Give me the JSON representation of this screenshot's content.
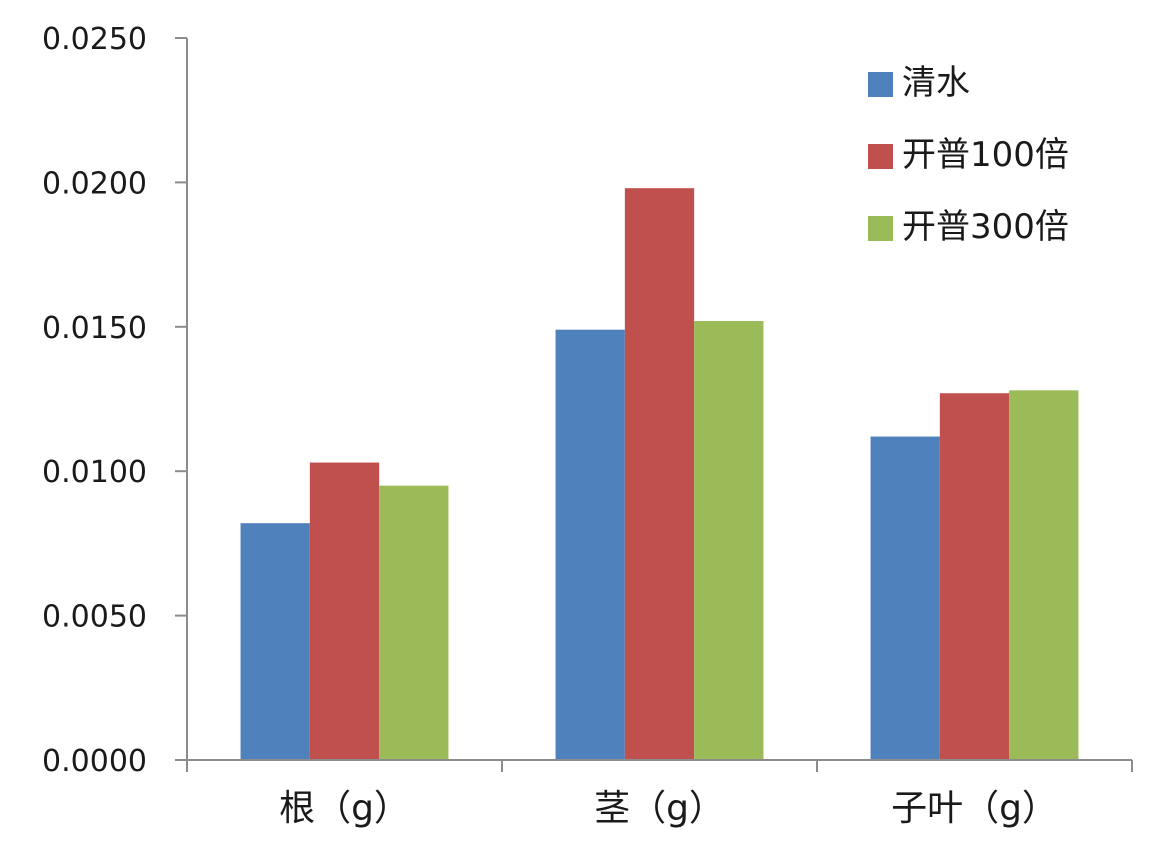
{
  "chart_data": {
    "type": "bar",
    "categories": [
      "根（g）",
      "茎（g）",
      "子叶（g）"
    ],
    "series": [
      {
        "name": "清水",
        "values": [
          0.0082,
          0.0149,
          0.0112
        ],
        "color": "#4F81BD"
      },
      {
        "name": "开普100倍",
        "values": [
          0.0103,
          0.0198,
          0.0127
        ],
        "color": "#C0504D"
      },
      {
        "name": "开普300倍",
        "values": [
          0.0095,
          0.0152,
          0.0128
        ],
        "color": "#9BBB59"
      }
    ],
    "yticks": [
      "0.0000",
      "0.0050",
      "0.0100",
      "0.0150",
      "0.0200",
      "0.0250"
    ],
    "ylim": [
      0,
      0.025
    ],
    "title": "",
    "xlabel": "",
    "ylabel": "",
    "grid": false,
    "legend_position": "top-right"
  }
}
